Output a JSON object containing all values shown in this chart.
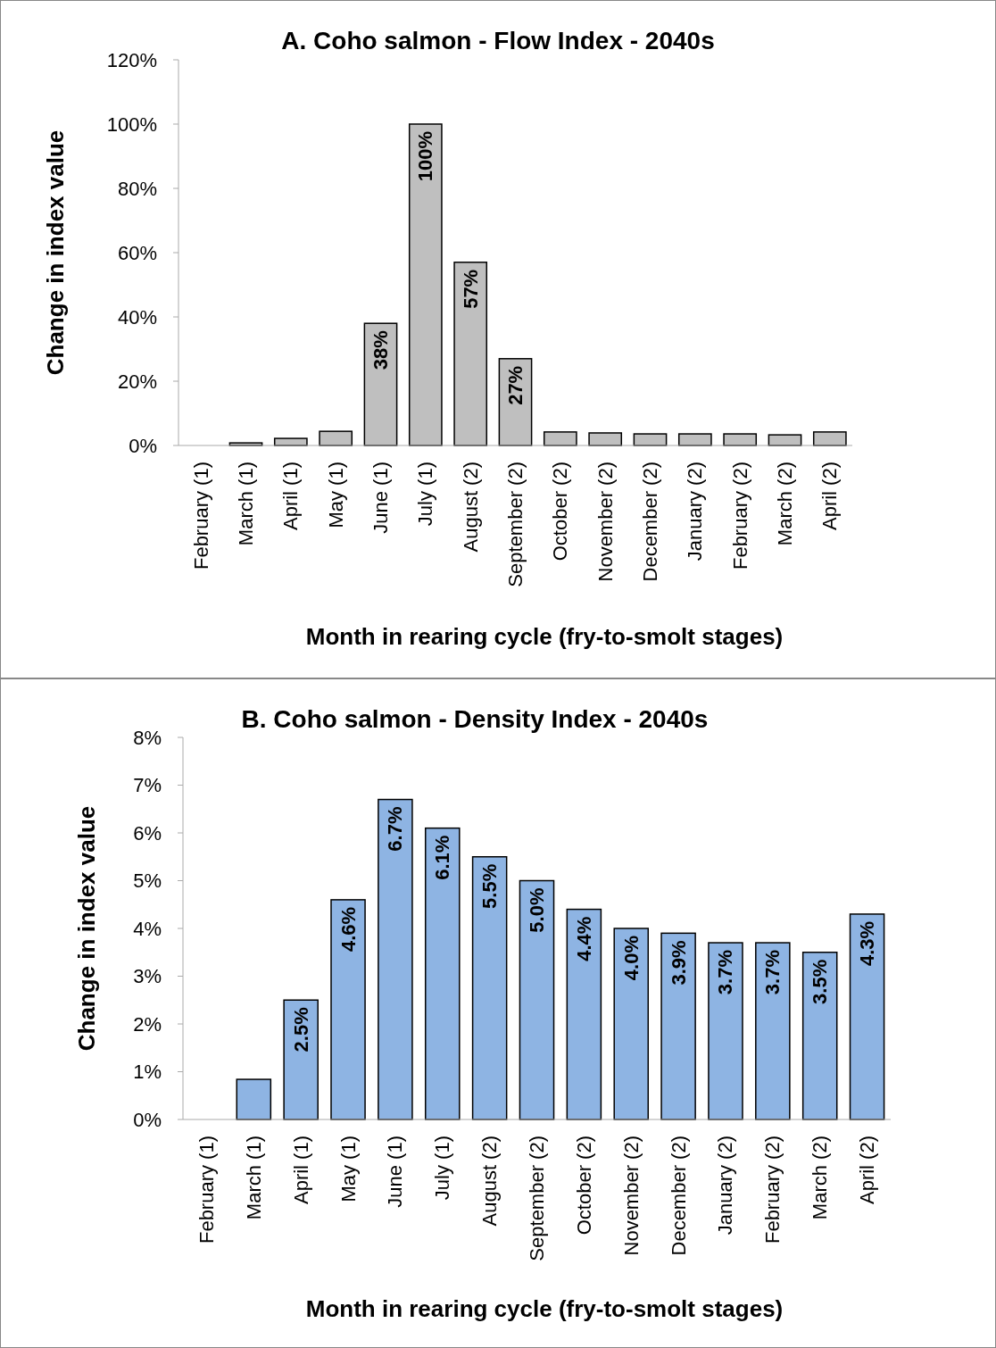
{
  "chart_data": [
    {
      "type": "bar",
      "title": "A. Coho salmon - Flow Index - 2040s",
      "xlabel": "Month in rearing cycle (fry-to-smolt stages)",
      "ylabel": "Change in index value",
      "categories": [
        "February (1)",
        "March (1)",
        "April (1)",
        "May (1)",
        "June (1)",
        "July (1)",
        "August (2)",
        "September (2)",
        "October (2)",
        "November (2)",
        "December (2)",
        "January (2)",
        "February (2)",
        "March (2)",
        "April (2)"
      ],
      "values": [
        0,
        0.8,
        2.2,
        4.4,
        38,
        100,
        57,
        27,
        4.2,
        3.9,
        3.6,
        3.6,
        3.6,
        3.3,
        4.2
      ],
      "value_labels": [
        null,
        null,
        null,
        null,
        "38%",
        "100%",
        "57%",
        "27%",
        null,
        null,
        null,
        null,
        null,
        null,
        null
      ],
      "color": "#bfbfbf",
      "ylim": [
        0,
        120
      ],
      "yticks": [
        {
          "value": 0,
          "label": "0%"
        },
        {
          "value": 20,
          "label": "20%"
        },
        {
          "value": 40,
          "label": "40%"
        },
        {
          "value": 60,
          "label": "60%"
        },
        {
          "value": 80,
          "label": "80%"
        },
        {
          "value": 100,
          "label": "100%"
        },
        {
          "value": 120,
          "label": "120%"
        }
      ]
    },
    {
      "type": "bar",
      "title": "B. Coho salmon - Density Index - 2040s",
      "xlabel": "Month in rearing cycle (fry-to-smolt stages)",
      "ylabel": "Change in index value",
      "categories": [
        "February (1)",
        "March (1)",
        "April (1)",
        "May (1)",
        "June (1)",
        "July (1)",
        "August (2)",
        "September (2)",
        "October (2)",
        "November (2)",
        "December (2)",
        "January (2)",
        "February (2)",
        "March (2)",
        "April (2)"
      ],
      "values": [
        0,
        0.84,
        2.5,
        4.6,
        6.7,
        6.1,
        5.5,
        5.0,
        4.4,
        4.0,
        3.9,
        3.7,
        3.7,
        3.5,
        4.3
      ],
      "value_labels": [
        null,
        null,
        "2.5%",
        "4.6%",
        "6.7%",
        "6.1%",
        "5.5%",
        "5.0%",
        "4.4%",
        "4.0%",
        "3.9%",
        "3.7%",
        "3.7%",
        "3.5%",
        "4.3%"
      ],
      "color": "#8eb4e3",
      "ylim": [
        0,
        8
      ],
      "yticks": [
        {
          "value": 0,
          "label": "0%"
        },
        {
          "value": 1,
          "label": "1%"
        },
        {
          "value": 2,
          "label": "2%"
        },
        {
          "value": 3,
          "label": "3%"
        },
        {
          "value": 4,
          "label": "4%"
        },
        {
          "value": 5,
          "label": "5%"
        },
        {
          "value": 6,
          "label": "6%"
        },
        {
          "value": 7,
          "label": "7%"
        },
        {
          "value": 8,
          "label": "8%"
        }
      ]
    }
  ]
}
